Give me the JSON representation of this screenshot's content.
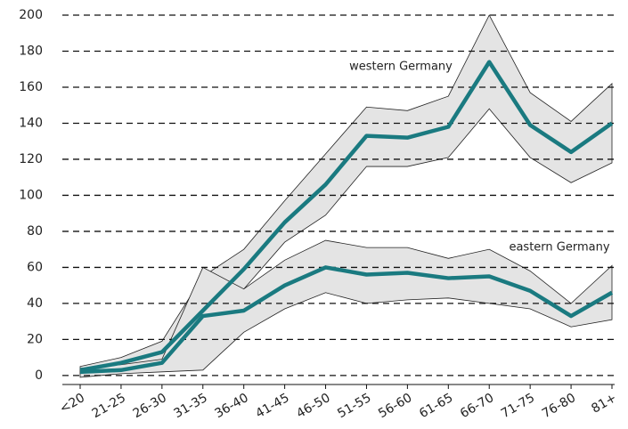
{
  "chart_data": {
    "type": "line",
    "categories": [
      "<20",
      "21-25",
      "26-30",
      "31-35",
      "36-40",
      "41-45",
      "46-50",
      "51-55",
      "56-60",
      "61-65",
      "66-70",
      "71-75",
      "76-80",
      "81+"
    ],
    "series": [
      {
        "name": "western Germany",
        "color": "#1a7a80",
        "values": [
          3,
          7,
          13,
          36,
          59,
          85,
          106,
          133,
          132,
          138,
          174,
          139,
          124,
          140
        ],
        "upper": [
          5,
          10,
          19,
          55,
          70,
          97,
          123,
          149,
          147,
          155,
          200,
          157,
          141,
          162
        ],
        "lower": [
          1,
          4,
          8,
          17,
          48,
          74,
          89,
          116,
          116,
          121,
          148,
          121,
          107,
          118
        ]
      },
      {
        "name": "eastern Germany",
        "color": "#1a7a80",
        "values": [
          2,
          3,
          7,
          33,
          36,
          50,
          60,
          56,
          57,
          54,
          55,
          47,
          33,
          46
        ],
        "upper": [
          4,
          6,
          9,
          60,
          48,
          64,
          75,
          71,
          71,
          65,
          70,
          58,
          40,
          61
        ],
        "lower": [
          -1,
          1,
          2,
          3,
          24,
          37,
          46,
          40,
          42,
          43,
          40,
          37,
          27,
          31
        ]
      }
    ],
    "band_color": "#e4e4e4",
    "ylim": [
      -5,
      200
    ],
    "yticks": [
      0,
      20,
      40,
      60,
      80,
      100,
      120,
      140,
      160,
      180,
      200
    ],
    "grid": true
  }
}
